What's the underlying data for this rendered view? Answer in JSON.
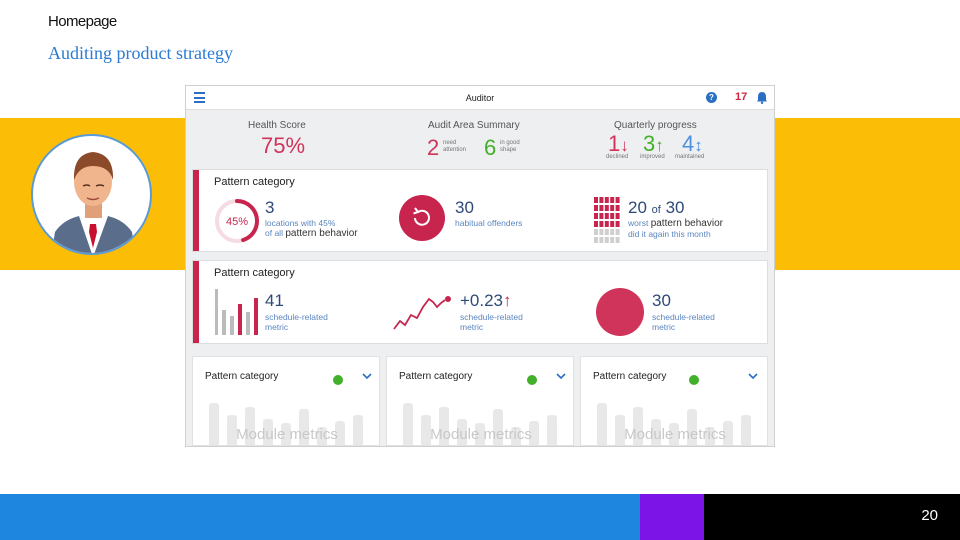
{
  "slide": {
    "top_title": "Homepage",
    "subtitle": "Auditing product strategy",
    "page_number": "20"
  },
  "app": {
    "title": "Auditor",
    "help_icon": "help-circle-icon",
    "help_glyph": "?",
    "notification_count": "17",
    "summary": {
      "health_label": "Health Score",
      "health_value": "75%",
      "audit_label": "Audit Area Summary",
      "audit_attention_value": "2",
      "audit_attention_text_1": "need",
      "audit_attention_text_2": "attention",
      "audit_good_value": "6",
      "audit_good_text_1": "in good",
      "audit_good_text_2": "shape",
      "quarter_label": "Quarterly progress",
      "declined_value": "1",
      "declined_label": "declined",
      "improved_value": "3",
      "improved_label": "improved",
      "maintained_value": "4",
      "maintained_label": "maintained"
    },
    "card1": {
      "title": "Pattern category",
      "donut_percent": 45,
      "donut_label": "45%",
      "m1_value": "3",
      "m1_text_1": "locations with 45%",
      "m1_text_2": "of all",
      "m1_text_dark": "pattern behavior",
      "m2_value": "30",
      "m2_text": "habitual offenders",
      "m3_value_a": "20",
      "m3_of": "of",
      "m3_value_b": "30",
      "m3_text_1": "worst",
      "m3_text_dark": "pattern behavior",
      "m3_text_2": "did it again this month"
    },
    "card2": {
      "title": "Pattern category",
      "m1_value": "41",
      "m1_text_1": "schedule-related",
      "m1_text_2": "metric",
      "m2_value": "+0.23",
      "m2_text_1": "schedule-related",
      "m2_text_2": "metric",
      "m3_value": "30",
      "m3_text_1": "schedule-related",
      "m3_text_2": "metric"
    },
    "modules": [
      {
        "title": "Pattern category",
        "placeholder": "Module metrics"
      },
      {
        "title": "Pattern category",
        "placeholder": "Module metrics"
      },
      {
        "title": "Pattern category",
        "placeholder": "Module metrics"
      }
    ],
    "colors": {
      "accent_red": "#c7254e",
      "accent_blue": "#2a6fc4",
      "accent_green": "#43b02a",
      "band_yellow": "#fcbd06"
    }
  }
}
